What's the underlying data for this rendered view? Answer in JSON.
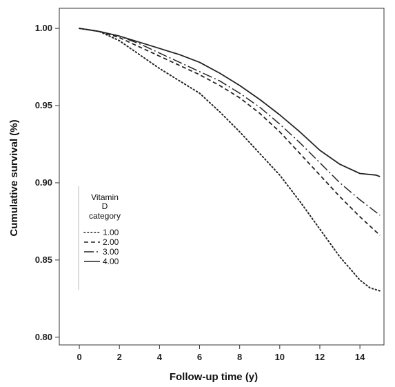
{
  "chart_data": {
    "type": "line",
    "title": "",
    "xlabel": "Follow-up time (y)",
    "ylabel": "Cumulative survival (%)",
    "xlim": [
      -1,
      15.2
    ],
    "ylim": [
      0.795,
      1.013
    ],
    "xticks": [
      0,
      2,
      4,
      6,
      8,
      10,
      12,
      14
    ],
    "xtick_labels": [
      "0",
      "2",
      "4",
      "6",
      "8",
      "10",
      "12",
      "14"
    ],
    "yticks": [
      0.8,
      0.85,
      0.9,
      0.95,
      1.0
    ],
    "ytick_labels": [
      "0.80",
      "0.85",
      "0.90",
      "0.95",
      "1.00"
    ],
    "grid": false,
    "legend": {
      "title": [
        "Vitamin",
        "D",
        "category"
      ],
      "position": "left-middle"
    },
    "series": [
      {
        "name": "1.00",
        "style": "dotted",
        "color": "#222222",
        "x": [
          0,
          1,
          2,
          3,
          4,
          5,
          6,
          7,
          8,
          9,
          10,
          11,
          12,
          13,
          14,
          14.5,
          15
        ],
        "y": [
          1.0,
          0.998,
          0.992,
          0.983,
          0.974,
          0.966,
          0.958,
          0.946,
          0.933,
          0.919,
          0.905,
          0.888,
          0.87,
          0.852,
          0.837,
          0.832,
          0.83
        ]
      },
      {
        "name": "2.00",
        "style": "dashed",
        "color": "#222222",
        "x": [
          0,
          1,
          2,
          3,
          4,
          5,
          6,
          7,
          8,
          9,
          10,
          11,
          12,
          13,
          14,
          15
        ],
        "y": [
          1.0,
          0.998,
          0.994,
          0.988,
          0.982,
          0.976,
          0.97,
          0.963,
          0.955,
          0.945,
          0.933,
          0.919,
          0.905,
          0.891,
          0.878,
          0.866
        ]
      },
      {
        "name": "3.00",
        "style": "longdash",
        "color": "#222222",
        "x": [
          0,
          1,
          2,
          3,
          4,
          5,
          6,
          7,
          8,
          9,
          10,
          11,
          12,
          13,
          14,
          15
        ],
        "y": [
          1.0,
          0.998,
          0.995,
          0.99,
          0.984,
          0.978,
          0.972,
          0.966,
          0.958,
          0.949,
          0.938,
          0.926,
          0.913,
          0.9,
          0.889,
          0.879
        ]
      },
      {
        "name": "4.00",
        "style": "solid",
        "color": "#222222",
        "x": [
          0,
          1,
          2,
          3,
          4,
          5,
          6,
          7,
          8,
          9,
          10,
          11,
          12,
          13,
          14,
          14.8,
          15
        ],
        "y": [
          1.0,
          0.998,
          0.995,
          0.991,
          0.987,
          0.983,
          0.978,
          0.971,
          0.963,
          0.954,
          0.944,
          0.933,
          0.921,
          0.912,
          0.906,
          0.905,
          0.904
        ]
      }
    ]
  }
}
